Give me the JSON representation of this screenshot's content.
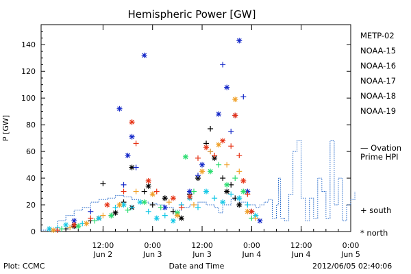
{
  "footer": {
    "plot_by": "Plot: CCMC",
    "timestamp": "2012/06/05 02:40:06"
  },
  "chart_data": {
    "type": "scatter",
    "title": "Hemispheric Power [GW]",
    "ylabel": "P [GW]",
    "xlabel": "Date and Time",
    "ylim": [
      0,
      155
    ],
    "xlim": [
      0,
      75
    ],
    "x_unit": "hours since 2012-06-01 21:00",
    "y_ticks": [
      0,
      20,
      40,
      60,
      80,
      100,
      120,
      140
    ],
    "x_ticks": [
      {
        "x": 15,
        "time": "12:00",
        "day": "Jun 2"
      },
      {
        "x": 27,
        "time": "0:00",
        "day": "Jun 3"
      },
      {
        "x": 39,
        "time": "12:00",
        "day": "Jun 3"
      },
      {
        "x": 51,
        "time": "0:00",
        "day": "Jun 4"
      },
      {
        "x": 63,
        "time": "12:00",
        "day": "Jun 4"
      },
      {
        "x": 75,
        "time": "0:00",
        "day": "Jun 5"
      }
    ],
    "legend": {
      "placement": "right",
      "entries": [
        {
          "name": "METP-02",
          "color": "#000000"
        },
        {
          "name": "NOAA-15",
          "color": "#1428c8"
        },
        {
          "name": "NOAA-16",
          "color": "#14c8e6"
        },
        {
          "name": "NOAA-17",
          "color": "#28dc6e"
        },
        {
          "name": "NOAA-18",
          "color": "#f0a028"
        },
        {
          "name": "NOAA-19",
          "color": "#e63214"
        }
      ],
      "ovation_label_1": "— Ovation",
      "ovation_label_2": "Prime HPI",
      "ovation_color": "#1e64c8",
      "south_label": "+ south",
      "north_label": "* north"
    },
    "ovation_series": [
      [
        0,
        1
      ],
      [
        3,
        2
      ],
      [
        4,
        8
      ],
      [
        6,
        12
      ],
      [
        8,
        16
      ],
      [
        10,
        18
      ],
      [
        12,
        22
      ],
      [
        14,
        24
      ],
      [
        16,
        25
      ],
      [
        18,
        27
      ],
      [
        20,
        26
      ],
      [
        22,
        24
      ],
      [
        24,
        22
      ],
      [
        26,
        21
      ],
      [
        28,
        20
      ],
      [
        30,
        18
      ],
      [
        32,
        16
      ],
      [
        34,
        18
      ],
      [
        36,
        20
      ],
      [
        38,
        22
      ],
      [
        40,
        20
      ],
      [
        42,
        18
      ],
      [
        43,
        14
      ],
      [
        44,
        20
      ],
      [
        46,
        24
      ],
      [
        48,
        22
      ],
      [
        50,
        20
      ],
      [
        52,
        18
      ],
      [
        53,
        20
      ],
      [
        54,
        22
      ],
      [
        55,
        24
      ],
      [
        56,
        10
      ],
      [
        57,
        20
      ],
      [
        57.5,
        40
      ],
      [
        58,
        10
      ],
      [
        59,
        8
      ],
      [
        60,
        28
      ],
      [
        61,
        60
      ],
      [
        62,
        68
      ],
      [
        63,
        25
      ],
      [
        64,
        8
      ],
      [
        65,
        25
      ],
      [
        66,
        10
      ],
      [
        67,
        40
      ],
      [
        68,
        30
      ],
      [
        69,
        10
      ],
      [
        70,
        68
      ],
      [
        71,
        20
      ],
      [
        72,
        40
      ],
      [
        73,
        8
      ],
      [
        74,
        20
      ],
      [
        75,
        24
      ],
      [
        76,
        30
      ]
    ],
    "series": [
      {
        "name": "METP-02",
        "points": [
          [
            6,
            2,
            "s"
          ],
          [
            8,
            4,
            "n"
          ],
          [
            12,
            8,
            "s"
          ],
          [
            14,
            10,
            "n"
          ],
          [
            17,
            12,
            "s"
          ],
          [
            18,
            14,
            "n"
          ],
          [
            20,
            22,
            "s"
          ],
          [
            22,
            18,
            "n"
          ],
          [
            25,
            30,
            "s"
          ],
          [
            26,
            34,
            "n"
          ],
          [
            27,
            20,
            "s"
          ],
          [
            30,
            25,
            "n"
          ],
          [
            32,
            15,
            "s"
          ],
          [
            34,
            10,
            "n"
          ],
          [
            36,
            28,
            "s"
          ],
          [
            38,
            40,
            "n"
          ],
          [
            40,
            66,
            "s"
          ],
          [
            41,
            77,
            "s"
          ],
          [
            42,
            55,
            "n"
          ],
          [
            44,
            40,
            "s"
          ],
          [
            45,
            30,
            "n"
          ],
          [
            47,
            25,
            "s"
          ],
          [
            48,
            20,
            "n"
          ],
          [
            15,
            36,
            "s"
          ],
          [
            22,
            48,
            "n"
          ],
          [
            46,
            35,
            "s"
          ]
        ]
      },
      {
        "name": "NOAA-15",
        "points": [
          [
            8,
            8,
            "n"
          ],
          [
            12,
            15,
            "s"
          ],
          [
            19,
            92,
            "n"
          ],
          [
            21,
            57,
            "n"
          ],
          [
            22,
            71,
            "n"
          ],
          [
            23,
            48,
            "s"
          ],
          [
            25,
            132,
            "n"
          ],
          [
            30,
            18,
            "n"
          ],
          [
            34,
            20,
            "s"
          ],
          [
            36,
            30,
            "n"
          ],
          [
            38,
            42,
            "s"
          ],
          [
            39,
            50,
            "n"
          ],
          [
            41,
            60,
            "s"
          ],
          [
            43,
            88,
            "n"
          ],
          [
            44,
            125,
            "s"
          ],
          [
            45,
            108,
            "n"
          ],
          [
            46,
            75,
            "s"
          ],
          [
            47,
            87,
            "s"
          ],
          [
            48,
            143,
            "n"
          ],
          [
            49,
            101,
            "s"
          ],
          [
            50,
            30,
            "n"
          ],
          [
            51,
            15,
            "s"
          ],
          [
            53,
            8,
            "n"
          ],
          [
            20,
            35,
            "s"
          ]
        ]
      },
      {
        "name": "NOAA-16",
        "points": [
          [
            2,
            2,
            "n"
          ],
          [
            4,
            3,
            "s"
          ],
          [
            6,
            5,
            "n"
          ],
          [
            10,
            6,
            "s"
          ],
          [
            14,
            10,
            "n"
          ],
          [
            18,
            18,
            "s"
          ],
          [
            20,
            20,
            "n"
          ],
          [
            22,
            18,
            "s"
          ],
          [
            24,
            22,
            "n"
          ],
          [
            26,
            15,
            "s"
          ],
          [
            28,
            10,
            "n"
          ],
          [
            30,
            12,
            "s"
          ],
          [
            32,
            8,
            "n"
          ],
          [
            34,
            20,
            "s"
          ],
          [
            36,
            25,
            "n"
          ],
          [
            38,
            18,
            "s"
          ],
          [
            40,
            30,
            "n"
          ],
          [
            42,
            25,
            "s"
          ],
          [
            44,
            22,
            "n"
          ],
          [
            46,
            28,
            "s"
          ],
          [
            48,
            25,
            "n"
          ],
          [
            50,
            20,
            "s"
          ],
          [
            52,
            12,
            "n"
          ]
        ]
      },
      {
        "name": "NOAA-17",
        "points": [
          [
            5,
            2,
            "s"
          ],
          [
            9,
            4,
            "n"
          ],
          [
            13,
            8,
            "s"
          ],
          [
            17,
            12,
            "n"
          ],
          [
            21,
            16,
            "s"
          ],
          [
            25,
            22,
            "n"
          ],
          [
            29,
            18,
            "s"
          ],
          [
            33,
            14,
            "n"
          ],
          [
            35,
            56,
            "n"
          ],
          [
            37,
            30,
            "s"
          ],
          [
            41,
            45,
            "n"
          ],
          [
            43,
            50,
            "s"
          ],
          [
            45,
            35,
            "n"
          ],
          [
            47,
            40,
            "s"
          ],
          [
            49,
            30,
            "n"
          ],
          [
            51,
            10,
            "s"
          ]
        ]
      },
      {
        "name": "NOAA-18",
        "points": [
          [
            3,
            1,
            "n"
          ],
          [
            7,
            3,
            "s"
          ],
          [
            11,
            6,
            "n"
          ],
          [
            15,
            12,
            "s"
          ],
          [
            19,
            20,
            "n"
          ],
          [
            23,
            30,
            "s"
          ],
          [
            27,
            28,
            "n"
          ],
          [
            31,
            22,
            "s"
          ],
          [
            33,
            12,
            "n"
          ],
          [
            37,
            20,
            "s"
          ],
          [
            39,
            45,
            "n"
          ],
          [
            41,
            60,
            "s"
          ],
          [
            43,
            65,
            "n"
          ],
          [
            45,
            50,
            "s"
          ],
          [
            47,
            99,
            "n"
          ],
          [
            48,
            45,
            "s"
          ],
          [
            50,
            15,
            "n"
          ],
          [
            52,
            10,
            "s"
          ]
        ]
      },
      {
        "name": "NOAA-19",
        "points": [
          [
            4,
            1,
            "s"
          ],
          [
            8,
            5,
            "n"
          ],
          [
            12,
            10,
            "s"
          ],
          [
            16,
            20,
            "n"
          ],
          [
            20,
            30,
            "s"
          ],
          [
            22,
            82,
            "n"
          ],
          [
            23,
            66,
            "s"
          ],
          [
            26,
            38,
            "n"
          ],
          [
            28,
            30,
            "s"
          ],
          [
            32,
            25,
            "n"
          ],
          [
            34,
            18,
            "s"
          ],
          [
            36,
            26,
            "n"
          ],
          [
            38,
            55,
            "s"
          ],
          [
            40,
            63,
            "n"
          ],
          [
            42,
            57,
            "s"
          ],
          [
            44,
            68,
            "n"
          ],
          [
            46,
            64,
            "s"
          ],
          [
            47,
            87,
            "n"
          ],
          [
            48,
            57,
            "s"
          ],
          [
            49,
            38,
            "n"
          ],
          [
            50,
            28,
            "s"
          ],
          [
            51,
            15,
            "n"
          ]
        ]
      }
    ]
  }
}
